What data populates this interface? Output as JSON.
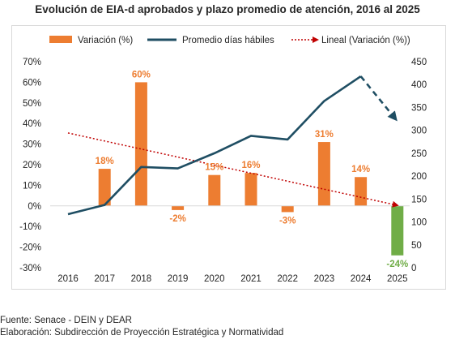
{
  "title": "Evolución de EIA-d aprobados y plazo promedio de atención, 2016 al 2025",
  "footer": {
    "source": "Fuente: Senace - DEIN y DEAR",
    "elaboration": "Elaboración: Subdirección de Proyección Estratégica y Normatividad"
  },
  "legend": {
    "bars": "Variación (%)",
    "line": "Promedio días hábiles",
    "trend": "Lineal (Variación (%))"
  },
  "colors": {
    "bar": "#ED7D31",
    "bar_negative_last": "#70AD47",
    "line": "#1F4E63",
    "trend": "#C00000",
    "axis_text": "#262626"
  },
  "chart_data": {
    "type": "bar",
    "categories": [
      "2016",
      "2017",
      "2018",
      "2019",
      "2020",
      "2021",
      "2022",
      "2023",
      "2024",
      "2025"
    ],
    "series": [
      {
        "name": "Variación (%)",
        "axis": "left",
        "values": [
          null,
          18,
          60,
          -2,
          15,
          16,
          -3,
          31,
          14,
          -24
        ],
        "labels": [
          "",
          "18%",
          "60%",
          "-2%",
          "15%",
          "16%",
          "-3%",
          "31%",
          "14%",
          "-24%"
        ]
      },
      {
        "name": "Promedio días hábiles",
        "type": "line",
        "axis": "right",
        "values": [
          117,
          137,
          220,
          217,
          250,
          288,
          280,
          364,
          418,
          320
        ],
        "dashed_from_index": 8
      },
      {
        "name": "Lineal (Variación (%))",
        "type": "trendline",
        "axis": "left",
        "values": [
          35.4,
          31.5,
          27.6,
          23.7,
          19.8,
          15.9,
          12.0,
          8.1,
          4.2,
          0.3
        ]
      }
    ],
    "y_left": {
      "min": -30,
      "max": 70,
      "step": 10,
      "ticks": [
        "70%",
        "60%",
        "50%",
        "40%",
        "30%",
        "20%",
        "10%",
        "0%",
        "-10%",
        "-20%",
        "-30%"
      ]
    },
    "y_right": {
      "min": 0,
      "max": 450,
      "step": 50,
      "ticks": [
        "450",
        "400",
        "350",
        "300",
        "250",
        "200",
        "150",
        "100",
        "50",
        "0"
      ]
    },
    "grid": false,
    "legend_position": "top"
  }
}
